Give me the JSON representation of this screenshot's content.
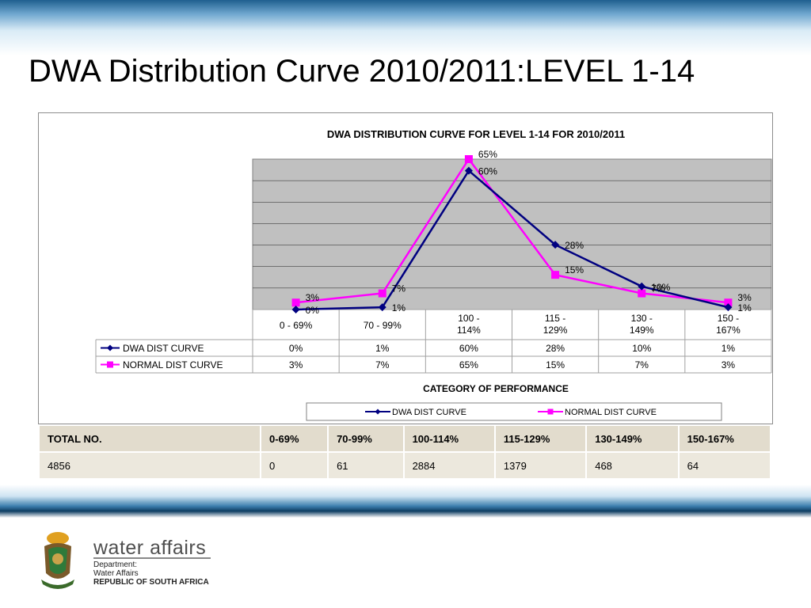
{
  "slide_title": "DWA Distribution Curve 2010/2011:LEVEL 1-14",
  "colors": {
    "dwa": "#000080",
    "normal": "#ff00ff",
    "plot_bg": "#c0c0c0"
  },
  "chart_data": {
    "type": "line",
    "title": "DWA DISTRIBUTION CURVE FOR LEVEL 1-14 FOR 2010/2011",
    "xlabel": "CATEGORY OF PERFORMANCE",
    "ylabel": "",
    "categories": [
      [
        "0 - 69%"
      ],
      [
        "70 - 99%"
      ],
      [
        "100 -",
        "114%"
      ],
      [
        "115 -",
        "129%"
      ],
      [
        "130 -",
        "149%"
      ],
      [
        "150 -",
        "167%"
      ]
    ],
    "ylim": [
      0,
      65
    ],
    "legend_position": "bottom",
    "series": [
      {
        "name": "DWA DIST CURVE",
        "values": [
          0,
          1,
          60,
          28,
          10,
          1
        ],
        "labels": [
          "0%",
          "1%",
          "60%",
          "28%",
          "10%",
          "1%"
        ],
        "color": "#000080",
        "marker": "diamond"
      },
      {
        "name": "NORMAL DIST CURVE",
        "values": [
          3,
          7,
          65,
          15,
          7,
          3
        ],
        "labels": [
          "3%",
          "7%",
          "65%",
          "15%",
          "7%",
          "3%"
        ],
        "color": "#ff00ff",
        "marker": "square"
      }
    ]
  },
  "stats_table": {
    "headers": [
      "TOTAL NO.",
      "0-69%",
      "70-99%",
      "100-114%",
      "115-129%",
      "130-149%",
      "150-167%"
    ],
    "values": [
      "4856",
      "0",
      "61",
      "2884",
      "1379",
      "468",
      "64"
    ]
  },
  "logo": {
    "wordmark": "water affairs",
    "line1": "Department:",
    "line2": "Water Affairs",
    "line3": "REPUBLIC OF SOUTH AFRICA"
  }
}
